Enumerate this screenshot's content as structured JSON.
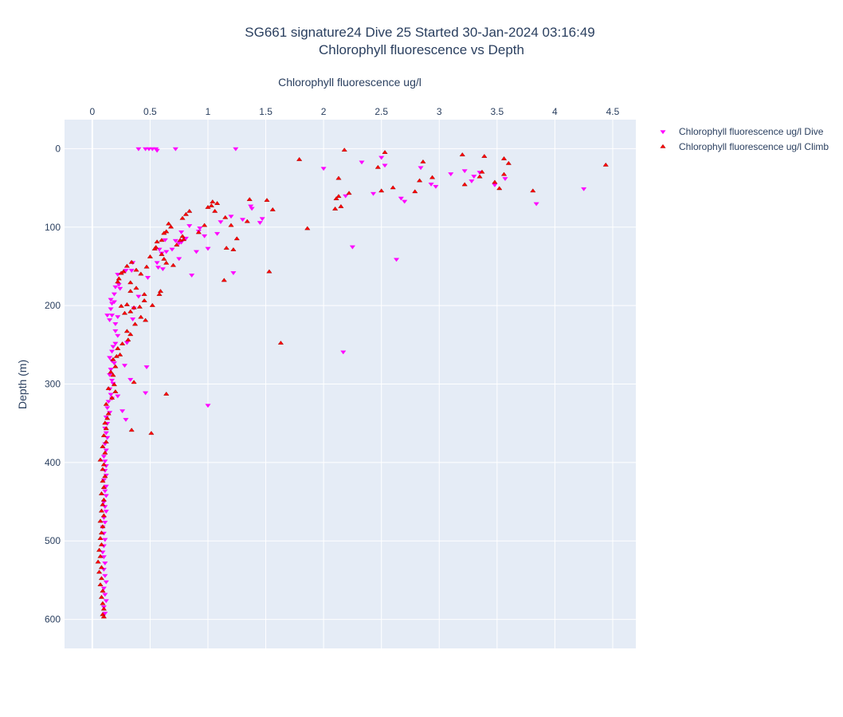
{
  "chart_data": {
    "type": "scatter",
    "title": "SG661 signature24 Dive 25 Started 30-Jan-2024 03:16:49",
    "subtitle": "Chlorophyll fluorescence vs Depth",
    "xlabel": "Chlorophyll fluorescence ug/l",
    "ylabel": "Depth (m)",
    "x_axis_position": "top",
    "y_axis_reversed": true,
    "xlim": [
      -0.24,
      4.7
    ],
    "ylim": [
      637,
      -37
    ],
    "x_ticks": [
      0,
      0.5,
      1,
      1.5,
      2,
      2.5,
      3,
      3.5,
      4,
      4.5
    ],
    "x_tick_labels": [
      "0",
      "0.5",
      "1",
      "1.5",
      "2",
      "2.5",
      "3",
      "3.5",
      "4",
      "4.5"
    ],
    "y_ticks": [
      0,
      100,
      200,
      300,
      400,
      500,
      600
    ],
    "y_tick_labels": [
      "0",
      "100",
      "200",
      "300",
      "400",
      "500",
      "600"
    ],
    "grid": true,
    "legend_position": "top-right",
    "plot_background": "#e5ecf6",
    "series": [
      {
        "name": "Chlorophyll fluorescence ug/l Dive",
        "marker": "triangle-down",
        "color": "#ff00ff",
        "points": [
          [
            0.4,
            0
          ],
          [
            0.46,
            0
          ],
          [
            0.49,
            0
          ],
          [
            0.52,
            0
          ],
          [
            0.55,
            0
          ],
          [
            0.56,
            2
          ],
          [
            0.72,
            0
          ],
          [
            1.24,
            0
          ],
          [
            2.0,
            25
          ],
          [
            2.33,
            17
          ],
          [
            2.43,
            57
          ],
          [
            2.5,
            11
          ],
          [
            2.53,
            21
          ],
          [
            2.67,
            63
          ],
          [
            2.7,
            67
          ],
          [
            2.84,
            24
          ],
          [
            2.93,
            45
          ],
          [
            2.97,
            48
          ],
          [
            3.1,
            32
          ],
          [
            3.22,
            28
          ],
          [
            3.28,
            41
          ],
          [
            3.3,
            35
          ],
          [
            3.35,
            30
          ],
          [
            3.48,
            46
          ],
          [
            3.57,
            38
          ],
          [
            3.84,
            70
          ],
          [
            4.25,
            51
          ],
          [
            2.19,
            60
          ],
          [
            1.37,
            73
          ],
          [
            1.38,
            76
          ],
          [
            1.45,
            94
          ],
          [
            1.47,
            89
          ],
          [
            1.3,
            90
          ],
          [
            1.2,
            86
          ],
          [
            1.11,
            93
          ],
          [
            0.97,
            111
          ],
          [
            0.93,
            101
          ],
          [
            0.92,
            105
          ],
          [
            1.0,
            127
          ],
          [
            1.08,
            108
          ],
          [
            1.22,
            158
          ],
          [
            0.77,
            106
          ],
          [
            0.72,
            117
          ],
          [
            0.69,
            128
          ],
          [
            0.77,
            119
          ],
          [
            0.81,
            114
          ],
          [
            0.84,
            98
          ],
          [
            0.9,
            131
          ],
          [
            0.75,
            120
          ],
          [
            0.63,
            116
          ],
          [
            0.58,
            128
          ],
          [
            0.6,
            133
          ],
          [
            0.56,
            145
          ],
          [
            0.57,
            151
          ],
          [
            0.61,
            153
          ],
          [
            0.64,
            131
          ],
          [
            0.75,
            140
          ],
          [
            0.86,
            161
          ],
          [
            0.35,
            145
          ],
          [
            0.34,
            155
          ],
          [
            0.29,
            155
          ],
          [
            0.22,
            160
          ],
          [
            0.23,
            173
          ],
          [
            0.24,
            178
          ],
          [
            0.2,
            176
          ],
          [
            0.19,
            185
          ],
          [
            0.16,
            192
          ],
          [
            0.17,
            197
          ],
          [
            0.19,
            195
          ],
          [
            0.16,
            204
          ],
          [
            0.13,
            212
          ],
          [
            0.15,
            218
          ],
          [
            0.17,
            212
          ],
          [
            0.2,
            223
          ],
          [
            0.22,
            214
          ],
          [
            0.2,
            232
          ],
          [
            0.22,
            238
          ],
          [
            0.2,
            248
          ],
          [
            0.18,
            252
          ],
          [
            0.17,
            258
          ],
          [
            0.15,
            266
          ],
          [
            0.17,
            270
          ],
          [
            0.19,
            273
          ],
          [
            0.16,
            281
          ],
          [
            0.15,
            288
          ],
          [
            0.17,
            295
          ],
          [
            0.18,
            299
          ],
          [
            0.15,
            306
          ],
          [
            0.16,
            313
          ],
          [
            0.17,
            318
          ],
          [
            0.14,
            322
          ],
          [
            0.13,
            330
          ],
          [
            0.15,
            336
          ],
          [
            0.12,
            342
          ],
          [
            0.13,
            350
          ],
          [
            0.11,
            356
          ],
          [
            0.12,
            362
          ],
          [
            0.13,
            368
          ],
          [
            0.11,
            376
          ],
          [
            0.12,
            384
          ],
          [
            0.1,
            392
          ],
          [
            0.11,
            398
          ],
          [
            0.12,
            404
          ],
          [
            0.11,
            410
          ],
          [
            0.12,
            416
          ],
          [
            0.1,
            422
          ],
          [
            0.12,
            430
          ],
          [
            0.11,
            436
          ],
          [
            0.12,
            442
          ],
          [
            0.1,
            450
          ],
          [
            0.11,
            456
          ],
          [
            0.12,
            462
          ],
          [
            0.1,
            470
          ],
          [
            0.11,
            476
          ],
          [
            0.09,
            482
          ],
          [
            0.1,
            490
          ],
          [
            0.11,
            498
          ],
          [
            0.1,
            506
          ],
          [
            0.09,
            514
          ],
          [
            0.1,
            520
          ],
          [
            0.11,
            528
          ],
          [
            0.1,
            536
          ],
          [
            0.11,
            544
          ],
          [
            0.12,
            552
          ],
          [
            0.1,
            560
          ],
          [
            0.11,
            568
          ],
          [
            0.12,
            576
          ],
          [
            0.1,
            584
          ],
          [
            0.11,
            592
          ],
          [
            0.3,
            247
          ],
          [
            0.28,
            276
          ],
          [
            0.33,
            294
          ],
          [
            0.47,
            278
          ],
          [
            0.46,
            311
          ],
          [
            0.22,
            315
          ],
          [
            0.26,
            334
          ],
          [
            0.29,
            345
          ],
          [
            0.48,
            164
          ],
          [
            0.4,
            188
          ],
          [
            0.36,
            203
          ],
          [
            0.35,
            217
          ],
          [
            1.0,
            327
          ],
          [
            2.17,
            259
          ],
          [
            2.63,
            141
          ],
          [
            2.25,
            125
          ]
        ]
      },
      {
        "name": "Chlorophyll fluorescence ug/l Climb",
        "marker": "triangle-up",
        "color": "#ff0000",
        "points": [
          [
            2.18,
            2
          ],
          [
            2.53,
            5
          ],
          [
            3.2,
            8
          ],
          [
            3.39,
            10
          ],
          [
            3.56,
            13
          ],
          [
            3.6,
            19
          ],
          [
            4.44,
            21
          ],
          [
            1.79,
            14
          ],
          [
            2.86,
            17
          ],
          [
            2.47,
            24
          ],
          [
            2.13,
            38
          ],
          [
            2.22,
            57
          ],
          [
            2.13,
            61
          ],
          [
            2.11,
            64
          ],
          [
            2.1,
            77
          ],
          [
            2.15,
            74
          ],
          [
            2.5,
            54
          ],
          [
            2.6,
            50
          ],
          [
            2.79,
            55
          ],
          [
            2.83,
            41
          ],
          [
            2.94,
            37
          ],
          [
            3.22,
            46
          ],
          [
            3.37,
            30
          ],
          [
            3.35,
            36
          ],
          [
            3.48,
            43
          ],
          [
            3.52,
            51
          ],
          [
            3.56,
            33
          ],
          [
            3.81,
            54
          ],
          [
            1.36,
            65
          ],
          [
            1.51,
            66
          ],
          [
            1.56,
            78
          ],
          [
            1.34,
            93
          ],
          [
            1.2,
            98
          ],
          [
            1.22,
            129
          ],
          [
            1.16,
            127
          ],
          [
            1.25,
            115
          ],
          [
            1.15,
            88
          ],
          [
            1.06,
            80
          ],
          [
            1.04,
            68
          ],
          [
            1.03,
            73
          ],
          [
            1.08,
            70
          ],
          [
            1.0,
            75
          ],
          [
            0.97,
            98
          ],
          [
            0.92,
            107
          ],
          [
            0.84,
            80
          ],
          [
            0.81,
            84
          ],
          [
            0.78,
            89
          ],
          [
            0.78,
            112
          ],
          [
            0.79,
            116
          ],
          [
            0.73,
            123
          ],
          [
            0.76,
            117
          ],
          [
            0.68,
            100
          ],
          [
            0.66,
            96
          ],
          [
            0.64,
            106
          ],
          [
            0.62,
            108
          ],
          [
            0.6,
            117
          ],
          [
            0.56,
            119
          ],
          [
            0.55,
            126
          ],
          [
            0.54,
            128
          ],
          [
            0.6,
            135
          ],
          [
            0.62,
            141
          ],
          [
            0.64,
            146
          ],
          [
            0.7,
            149
          ],
          [
            0.5,
            138
          ],
          [
            0.47,
            151
          ],
          [
            0.42,
            160
          ],
          [
            0.38,
            155
          ],
          [
            0.34,
            145
          ],
          [
            0.3,
            150
          ],
          [
            0.27,
            157
          ],
          [
            0.25,
            159
          ],
          [
            0.23,
            166
          ],
          [
            0.22,
            170
          ],
          [
            0.33,
            171
          ],
          [
            0.38,
            178
          ],
          [
            0.33,
            182
          ],
          [
            0.45,
            186
          ],
          [
            0.45,
            194
          ],
          [
            0.41,
            202
          ],
          [
            0.36,
            203
          ],
          [
            0.3,
            199
          ],
          [
            0.25,
            201
          ],
          [
            0.28,
            210
          ],
          [
            0.33,
            208
          ],
          [
            0.42,
            215
          ],
          [
            0.46,
            219
          ],
          [
            0.37,
            224
          ],
          [
            0.3,
            233
          ],
          [
            0.33,
            237
          ],
          [
            0.31,
            244
          ],
          [
            0.26,
            249
          ],
          [
            0.22,
            255
          ],
          [
            0.24,
            263
          ],
          [
            0.21,
            265
          ],
          [
            0.18,
            269
          ],
          [
            0.2,
            278
          ],
          [
            0.16,
            285
          ],
          [
            0.18,
            289
          ],
          [
            0.19,
            301
          ],
          [
            0.14,
            306
          ],
          [
            0.17,
            318
          ],
          [
            0.12,
            326
          ],
          [
            0.14,
            338
          ],
          [
            0.13,
            344
          ],
          [
            0.11,
            350
          ],
          [
            0.12,
            357
          ],
          [
            0.1,
            366
          ],
          [
            0.12,
            374
          ],
          [
            0.09,
            380
          ],
          [
            0.11,
            388
          ],
          [
            0.07,
            397
          ],
          [
            0.1,
            403
          ],
          [
            0.09,
            409
          ],
          [
            0.11,
            418
          ],
          [
            0.09,
            424
          ],
          [
            0.1,
            432
          ],
          [
            0.08,
            440
          ],
          [
            0.1,
            448
          ],
          [
            0.09,
            454
          ],
          [
            0.08,
            462
          ],
          [
            0.1,
            468
          ],
          [
            0.07,
            475
          ],
          [
            0.09,
            482
          ],
          [
            0.08,
            490
          ],
          [
            0.07,
            497
          ],
          [
            0.08,
            505
          ],
          [
            0.06,
            512
          ],
          [
            0.07,
            520
          ],
          [
            0.05,
            527
          ],
          [
            0.08,
            534
          ],
          [
            0.06,
            540
          ],
          [
            0.08,
            548
          ],
          [
            0.07,
            556
          ],
          [
            0.09,
            564
          ],
          [
            0.08,
            572
          ],
          [
            0.09,
            580
          ],
          [
            0.1,
            587
          ],
          [
            0.09,
            594
          ],
          [
            0.1,
            597
          ],
          [
            0.58,
            186
          ],
          [
            0.59,
            182
          ],
          [
            0.52,
            200
          ],
          [
            0.64,
            313
          ],
          [
            0.51,
            363
          ],
          [
            0.36,
            298
          ],
          [
            0.34,
            359
          ],
          [
            1.86,
            102
          ],
          [
            1.53,
            157
          ],
          [
            1.63,
            248
          ],
          [
            1.14,
            168
          ],
          [
            0.2,
            310
          ]
        ]
      }
    ]
  }
}
